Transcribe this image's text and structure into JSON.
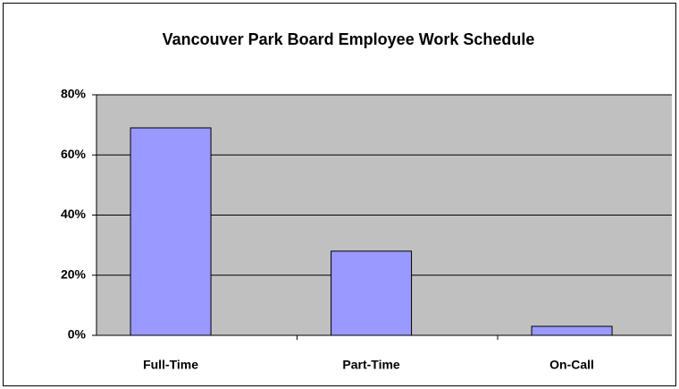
{
  "chart_data": {
    "type": "bar",
    "title": "Vancouver Park Board Employee Work Schedule",
    "categories": [
      "Full-Time",
      "Part-Time",
      "On-Call"
    ],
    "values": [
      69,
      28,
      3
    ],
    "color": "#9999ff",
    "ylim": [
      0,
      80
    ],
    "yticks": [
      {
        "value": 0,
        "label": "0%"
      },
      {
        "value": 20,
        "label": "20%"
      },
      {
        "value": 40,
        "label": "40%"
      },
      {
        "value": 60,
        "label": "60%"
      },
      {
        "value": 80,
        "label": "80%"
      }
    ],
    "grid": true
  }
}
